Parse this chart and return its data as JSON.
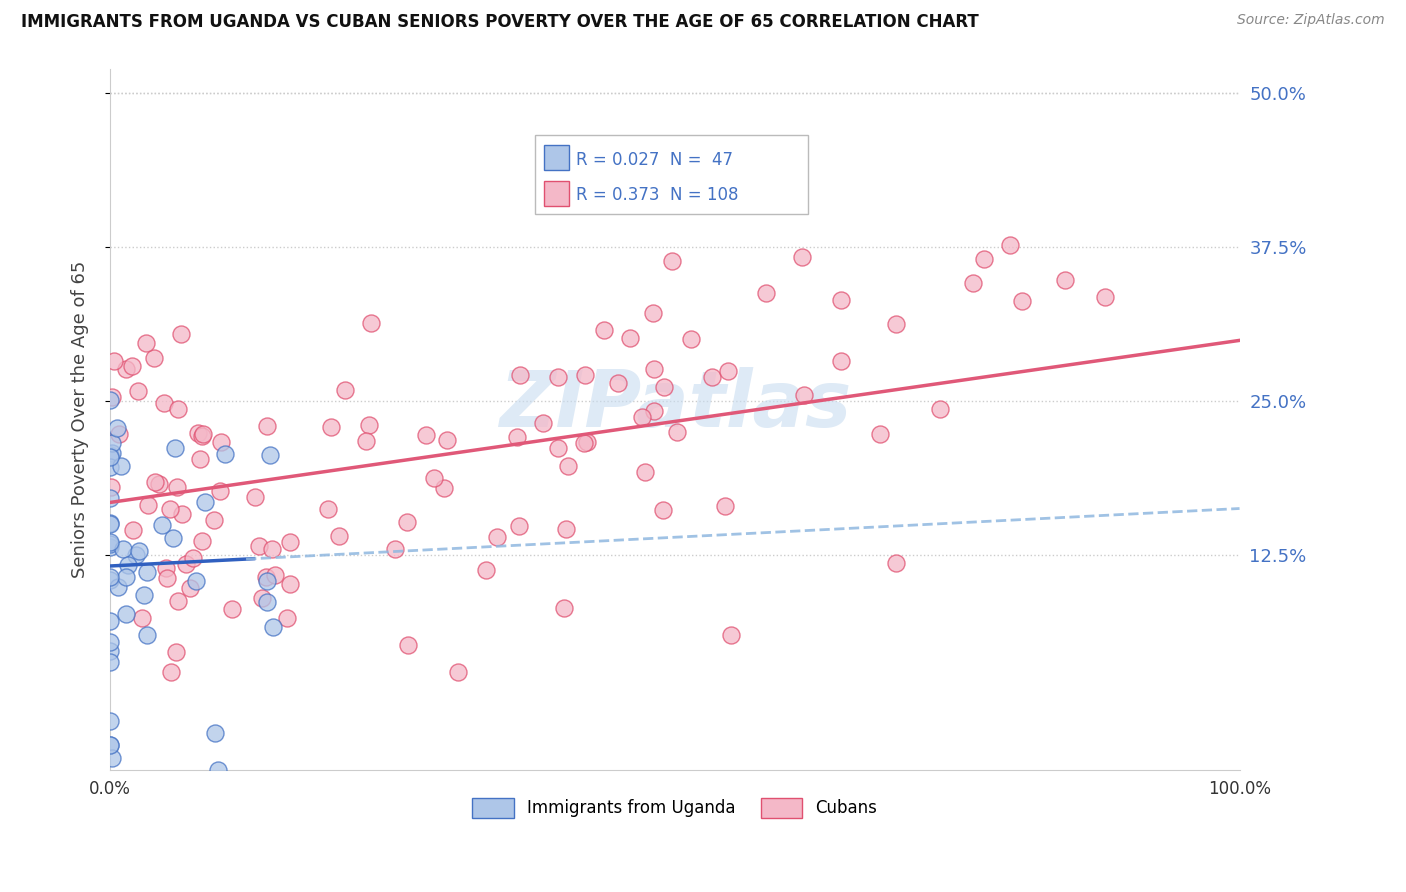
{
  "title": "IMMIGRANTS FROM UGANDA VS CUBAN SENIORS POVERTY OVER THE AGE OF 65 CORRELATION CHART",
  "source": "Source: ZipAtlas.com",
  "ylabel": "Seniors Poverty Over the Age of 65",
  "blue_color": "#AEC6E8",
  "blue_edge_color": "#4472C4",
  "pink_color": "#F4B8C8",
  "pink_edge_color": "#E05070",
  "blue_line_color": "#3060C0",
  "pink_line_color": "#E05878",
  "dashed_line_color": "#90B8E0",
  "xlim": [
    0,
    1.0
  ],
  "ylim": [
    -0.05,
    0.52
  ],
  "yticks": [
    0.125,
    0.25,
    0.375,
    0.5
  ],
  "ytick_labels": [
    "12.5%",
    "25.0%",
    "37.5%",
    "50.0%"
  ],
  "watermark_color": "#C8DCF0",
  "legend_blue_text": "R = 0.027  N =  47",
  "legend_pink_text": "R = 0.373  N = 108",
  "bottom_legend_blue": "Immigrants from Uganda",
  "bottom_legend_pink": "Cubans"
}
